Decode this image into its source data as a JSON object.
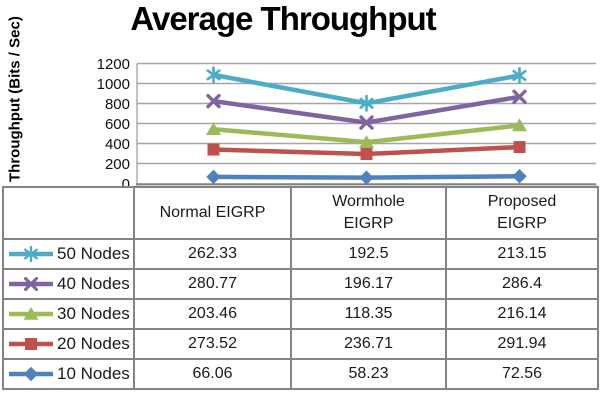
{
  "chart_data": {
    "type": "line",
    "stacking": "stacked",
    "title": "Average Throughput",
    "xlabel": "",
    "ylabel": "Throughput (Bits / Sec)",
    "ylim": [
      0,
      1200
    ],
    "y_ticks": [
      0,
      200,
      400,
      600,
      800,
      1000,
      1200
    ],
    "grid": "horizontal",
    "legend_position": "table-left",
    "categories": [
      "Normal EIGRP",
      "Wormhole\nEIGRP",
      "Proposed\nEIGRP"
    ],
    "series": [
      {
        "name": "50 Nodes",
        "color": "#4BACC6",
        "marker": "asterisk",
        "values": [
          262.33,
          192.5,
          213.15
        ]
      },
      {
        "name": "40 Nodes",
        "color": "#8064A2",
        "marker": "x",
        "values": [
          280.77,
          196.17,
          286.4
        ]
      },
      {
        "name": "30 Nodes",
        "color": "#9BBB59",
        "marker": "triangle",
        "values": [
          203.46,
          118.35,
          216.14
        ]
      },
      {
        "name": "20 Nodes",
        "color": "#C0504D",
        "marker": "square",
        "values": [
          273.52,
          236.71,
          291.94
        ]
      },
      {
        "name": "10 Nodes",
        "color": "#4F81BD",
        "marker": "diamond",
        "values": [
          66.06,
          58.23,
          72.56
        ]
      }
    ]
  }
}
